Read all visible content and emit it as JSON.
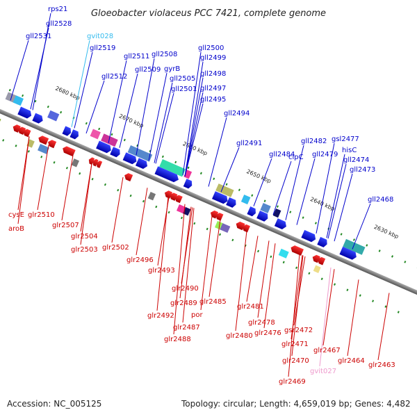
{
  "title": "Gloeobacter violaceus PCC 7421, complete genome",
  "accession_text": "Accession: NC_005125",
  "topology_text": "Topology: circular; Length: 4,659,019 bp; Genes: 4,482",
  "colors": {
    "forward": "#0000cc",
    "reverse": "#cc0000",
    "rna": "#33bbee",
    "pseudo": "#ee99cc",
    "backbone": "#808080",
    "tick": "#228822"
  },
  "kbp_labels": [
    "2680 kbp",
    "2670 kbp",
    "2660 kbp",
    "2650 kbp",
    "2640 kbp",
    "2630 kbp"
  ],
  "top_genes": [
    "rps21",
    "gll2528",
    "gll2531",
    "gvit028",
    "gll2519",
    "gll2511",
    "gll2508",
    "gll2512",
    "gll2509",
    "gyrB",
    "gll2500",
    "gll2499",
    "gll2498",
    "gll2505",
    "gll2501",
    "gll2497",
    "gll2495",
    "gll2494",
    "gll2491",
    "gll2484",
    "gll2482",
    "clpC",
    "gsl2477",
    "gll2479",
    "hisC",
    "gll2474",
    "gll2473",
    "gll2468"
  ],
  "bottom_genes": [
    "cysE",
    "glr2510",
    "aroB",
    "glr2507",
    "glr2504",
    "glr2503",
    "glr2502",
    "glr2496",
    "glr2493",
    "glr2490",
    "glr2489",
    "glr2492",
    "glr2485",
    "glr2487",
    "por",
    "glr2488",
    "glr2481",
    "glr2478",
    "glr2476",
    "glr2480",
    "gsr2472",
    "glr2471",
    "glr2470",
    "glr2469",
    "glr2467",
    "gvit027",
    "glr2464",
    "glr2463"
  ]
}
